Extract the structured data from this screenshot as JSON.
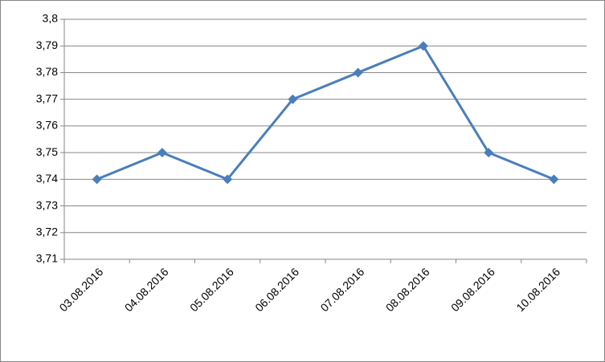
{
  "chart_data": {
    "type": "line",
    "categories": [
      "03.08.2016",
      "04.08.2016",
      "05.08.2016",
      "06.08.2016",
      "07.08.2016",
      "08.08.2016",
      "09.08.2016",
      "10.08.2016"
    ],
    "values": [
      3.74,
      3.75,
      3.74,
      3.77,
      3.78,
      3.79,
      3.75,
      3.74
    ],
    "color": "#4a7ebb",
    "ylim": [
      3.71,
      3.8
    ],
    "yticks": [
      {
        "value": 3.71,
        "label": "3,71"
      },
      {
        "value": 3.72,
        "label": "3,72"
      },
      {
        "value": 3.73,
        "label": "3,73"
      },
      {
        "value": 3.74,
        "label": "3,74"
      },
      {
        "value": 3.75,
        "label": "3,75"
      },
      {
        "value": 3.76,
        "label": "3,76"
      },
      {
        "value": 3.77,
        "label": "3,77"
      },
      {
        "value": 3.78,
        "label": "3,78"
      },
      {
        "value": 3.79,
        "label": "3,79"
      },
      {
        "value": 3.8,
        "label": "3,8"
      }
    ],
    "grid": true
  }
}
